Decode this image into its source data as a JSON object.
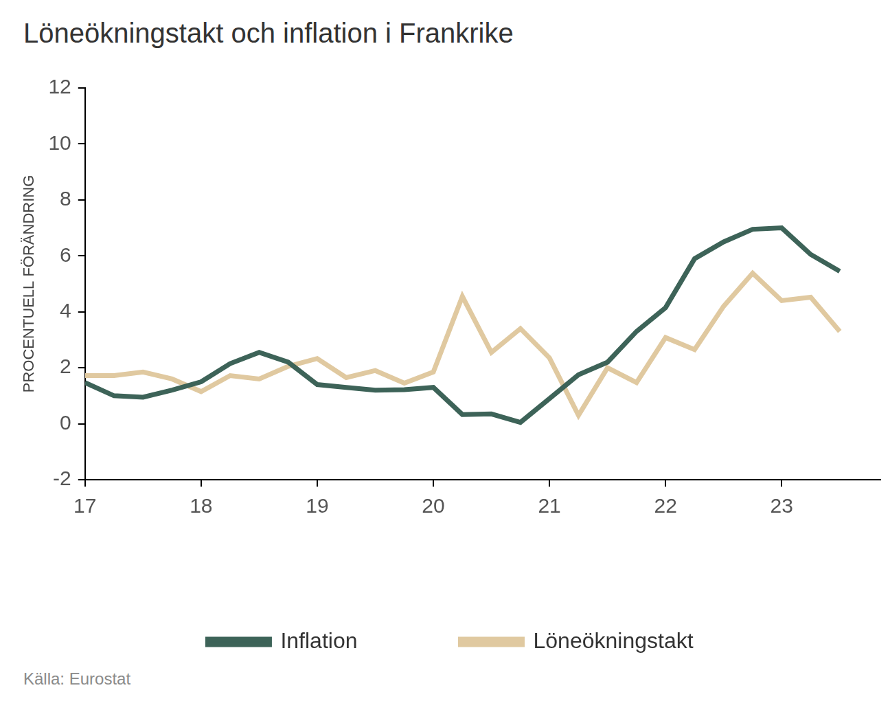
{
  "chart_data": {
    "type": "line",
    "title": "Löneökningstakt och inflation i Frankrike",
    "y_label": "PROCENTUELL FÖRÄNDRING",
    "source": "Källa: Eurostat",
    "x": [
      17,
      17.25,
      17.5,
      17.75,
      18,
      18.25,
      18.5,
      18.75,
      19,
      19.25,
      19.5,
      19.75,
      20,
      20.25,
      20.5,
      20.75,
      21,
      21.25,
      21.5,
      21.75,
      22,
      22.25,
      22.5,
      22.75,
      23,
      23.25,
      23.5
    ],
    "series": [
      {
        "name": "Inflation",
        "color": "#3d6358",
        "values": [
          1.47,
          1.0,
          0.95,
          1.2,
          1.5,
          2.15,
          2.55,
          2.2,
          1.4,
          1.3,
          1.2,
          1.22,
          1.3,
          0.33,
          0.35,
          0.05,
          0.9,
          1.75,
          2.2,
          3.3,
          4.15,
          5.9,
          6.5,
          6.95,
          7.0,
          6.05,
          5.45
        ]
      },
      {
        "name": "Löneökningstakt",
        "color": "#e0c9a0",
        "values": [
          1.72,
          1.72,
          1.85,
          1.6,
          1.15,
          1.72,
          1.6,
          2.05,
          2.33,
          1.65,
          1.9,
          1.45,
          1.85,
          4.55,
          2.55,
          3.4,
          2.35,
          0.3,
          2.0,
          1.47,
          3.08,
          2.65,
          4.2,
          5.38,
          4.4,
          4.52,
          3.3
        ]
      }
    ],
    "xlim": [
      17,
      23.85
    ],
    "xticks": [
      17,
      18,
      19,
      20,
      21,
      22,
      23
    ],
    "ylim": [
      -2,
      12
    ],
    "yticks": [
      -2,
      0,
      2,
      4,
      6,
      8,
      10,
      12
    ],
    "grid": false,
    "legend": "bottom"
  }
}
